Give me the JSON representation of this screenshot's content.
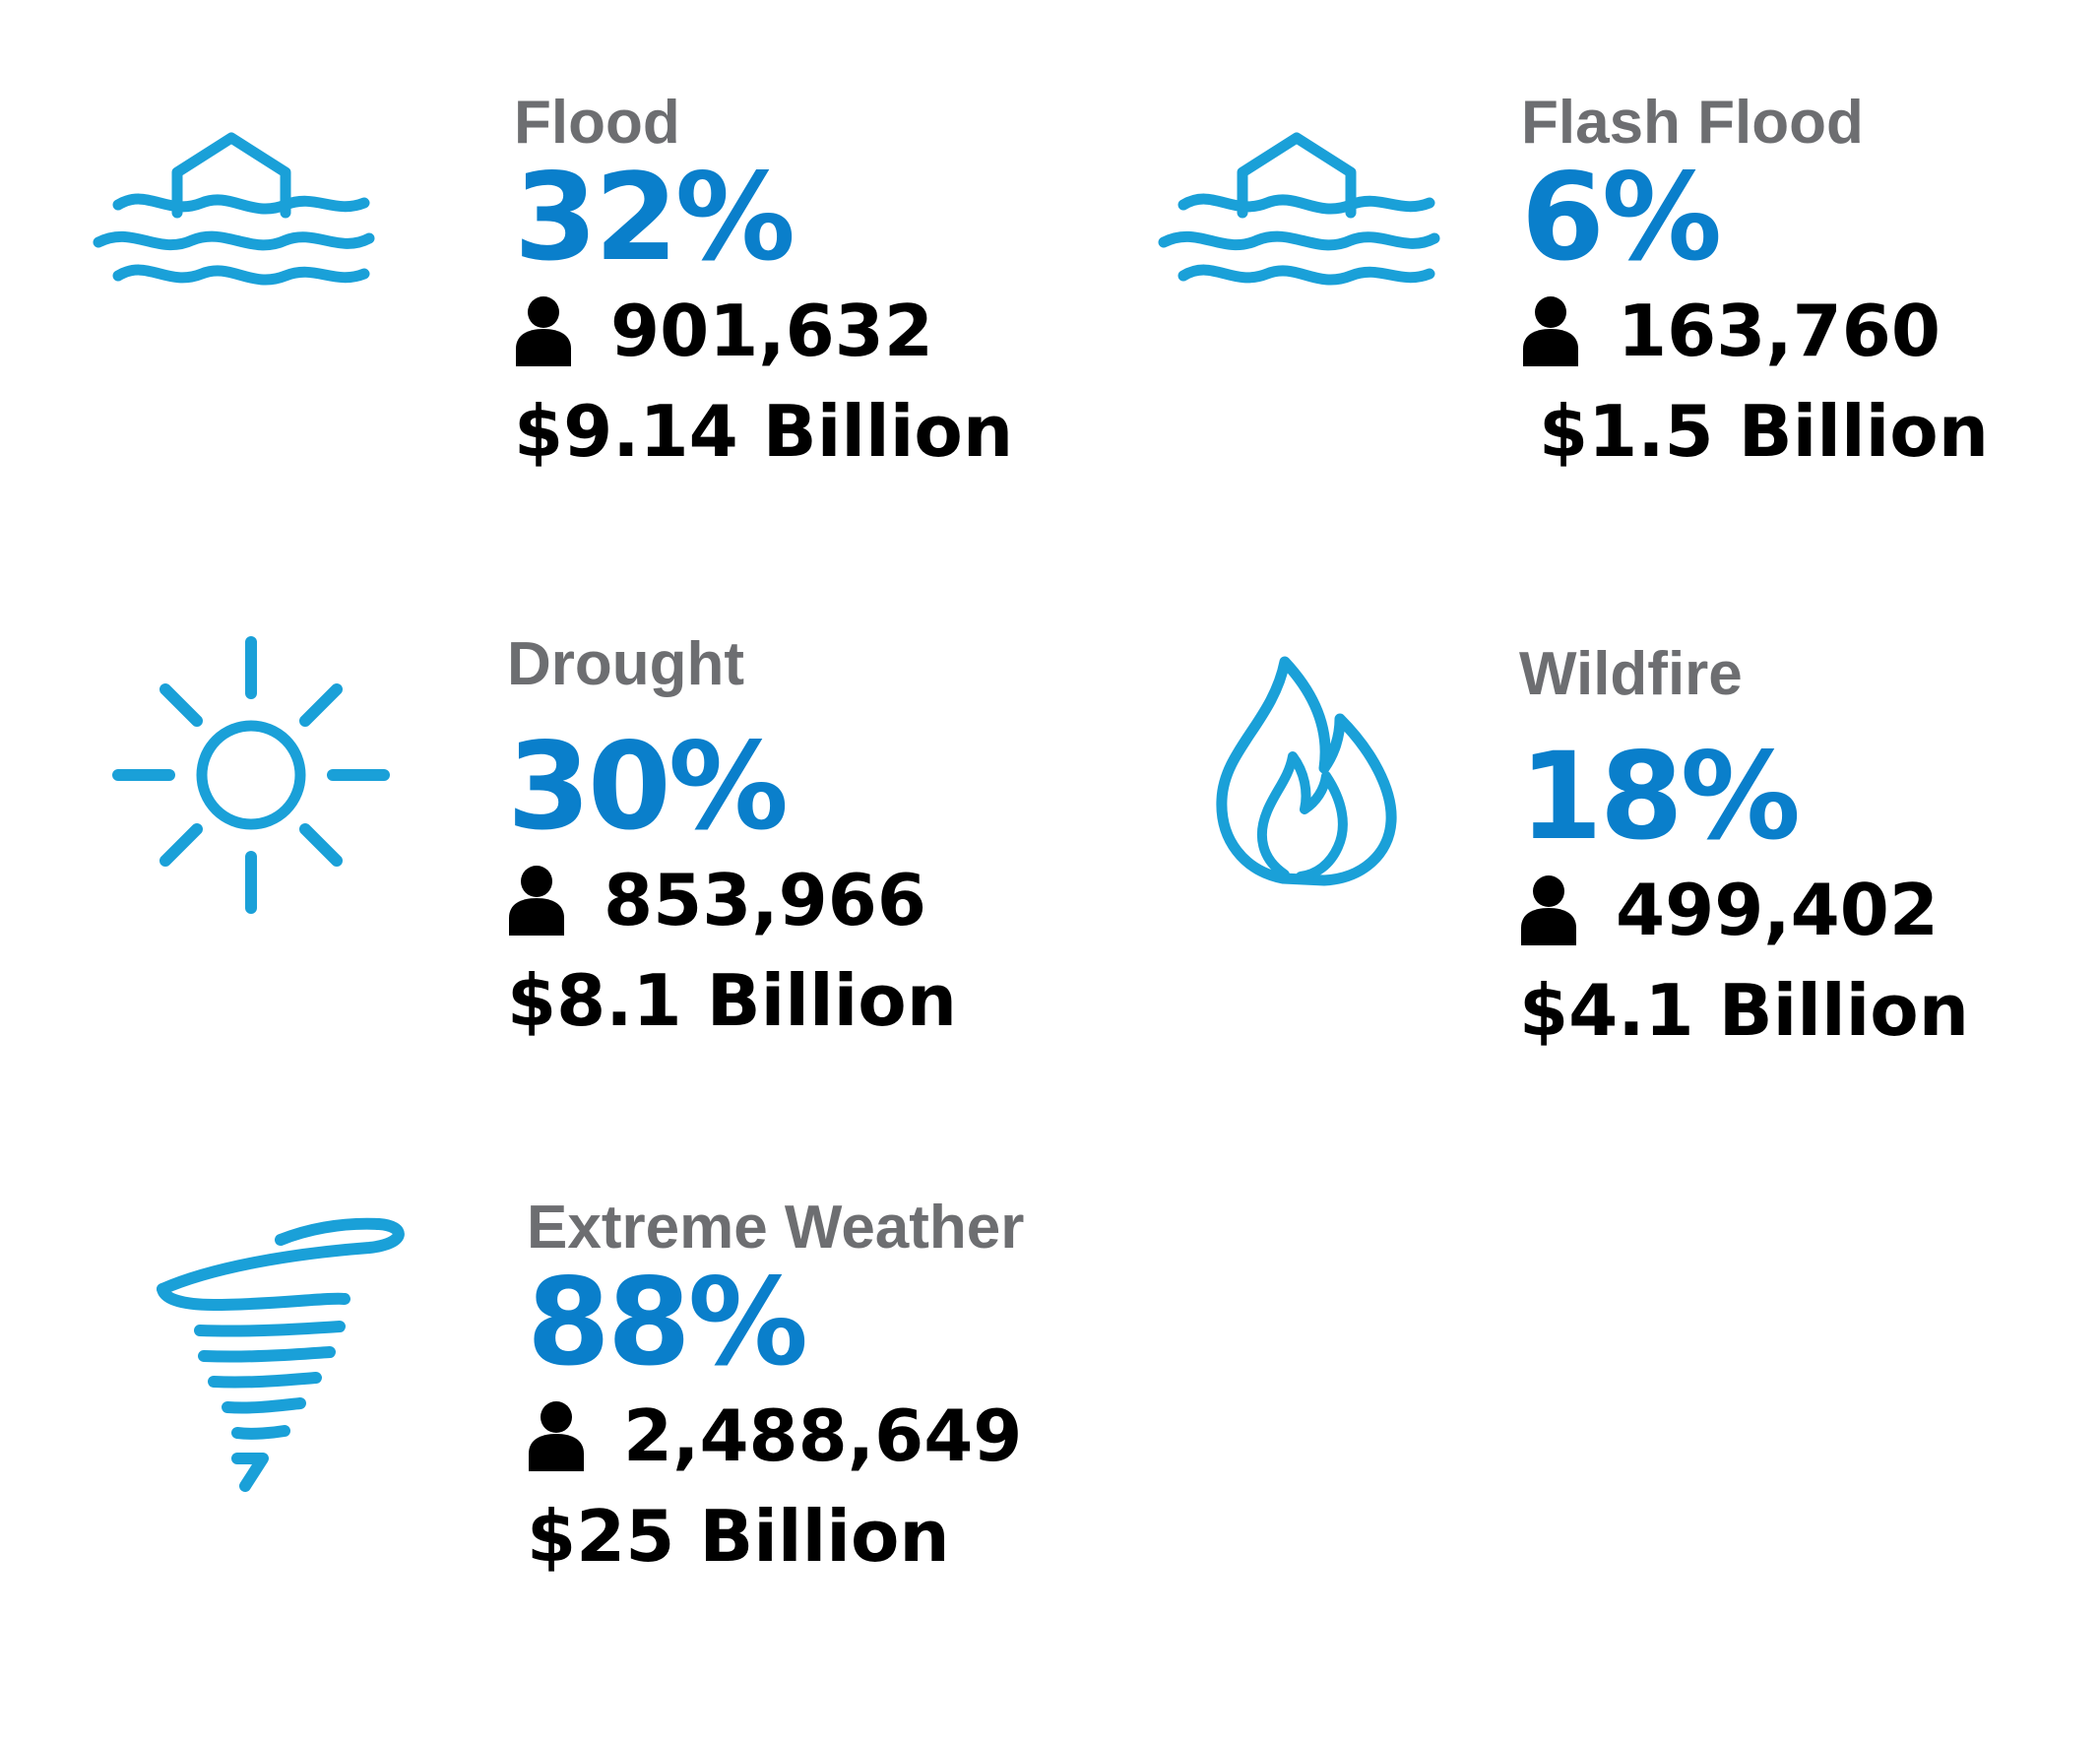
{
  "colors": {
    "accent": "#0a7fcb",
    "icon": "#1aa0d8",
    "label": "#6d6e71",
    "text": "#000000"
  },
  "hazards": [
    {
      "icon": "flooded-house-icon",
      "label": "Flood",
      "percent": "32%",
      "people": "901,632",
      "cost": "$9.14 Billion"
    },
    {
      "icon": "flooded-house-icon",
      "label": "Flash Flood",
      "percent": "6%",
      "people": "163,760",
      "cost": "$1.5 Billion"
    },
    {
      "icon": "sun-icon",
      "label": "Drought",
      "percent": "30%",
      "people": "853,966",
      "cost": "$8.1 Billion"
    },
    {
      "icon": "flame-icon",
      "label": "Wildfire",
      "percent": "18%",
      "people": "499,402",
      "cost": "$4.1 Billion"
    },
    {
      "icon": "tornado-icon",
      "label": "Extreme Weather",
      "percent": "88%",
      "people": "2,488,649",
      "cost": "$25 Billion"
    }
  ]
}
